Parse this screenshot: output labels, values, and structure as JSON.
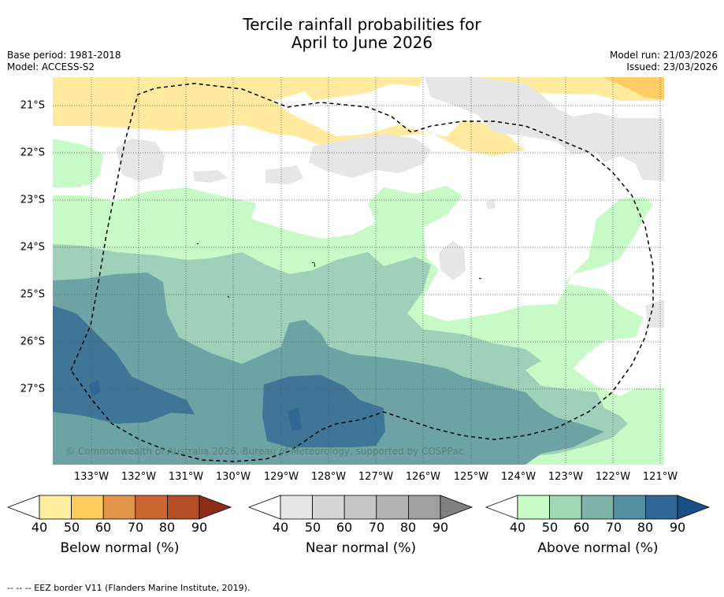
{
  "title_line1": "Tercile rainfall probabilities for",
  "title_line2": "April to June 2026",
  "base_period": "Base period: 1981-2018",
  "model": "Model: ACCESS-S2",
  "model_run": "Model run: 21/03/2026",
  "issued": "Issued: 23/03/2026",
  "lat_labels": [
    "21°S",
    "22°S",
    "23°S",
    "24°S",
    "25°S",
    "26°S",
    "27°S"
  ],
  "lon_labels": [
    "133°W",
    "132°W",
    "131°W",
    "130°W",
    "129°W",
    "128°W",
    "127°W",
    "126°W",
    "125°W",
    "124°W",
    "123°W",
    "122°W",
    "121°W"
  ],
  "copyright": "© Commonwealth of Australia 2026, Bureau of Meteorology, supported by COSPPac",
  "colorbars": [
    {
      "label": "Below normal (%)",
      "ticks": [
        "40",
        "50",
        "60",
        "70",
        "80",
        "90"
      ],
      "colors": [
        "#ffffff",
        "#ffeda0",
        "#fecc5c",
        "#e2944a",
        "#cc6633",
        "#b34d26",
        "#8c2d1a"
      ]
    },
    {
      "label": "Near normal (%)",
      "ticks": [
        "40",
        "50",
        "60",
        "70",
        "80",
        "90"
      ],
      "colors": [
        "#ffffff",
        "#e6e6e6",
        "#d6d6d6",
        "#c6c6c6",
        "#b4b4b4",
        "#a0a0a0",
        "#808080"
      ]
    },
    {
      "label": "Above normal (%)",
      "ticks": [
        "40",
        "50",
        "60",
        "70",
        "80",
        "90"
      ],
      "colors": [
        "#ffffff",
        "#c8fac8",
        "#a2d7b4",
        "#7fb3aa",
        "#5490a4",
        "#2f6796",
        "#174f85"
      ]
    }
  ],
  "footnote": "--  --  -- EEZ border V11 (Flanders Marine Institute, 2019).",
  "colors": {
    "above_50": "#c8fac8",
    "above_60": "#9fd1ba",
    "above_70": "#6ea3a5",
    "above_80": "#3f7596",
    "below_50": "#ffeaa0",
    "below_60": "#ffcc66",
    "near_50": "#e6e6e6"
  }
}
